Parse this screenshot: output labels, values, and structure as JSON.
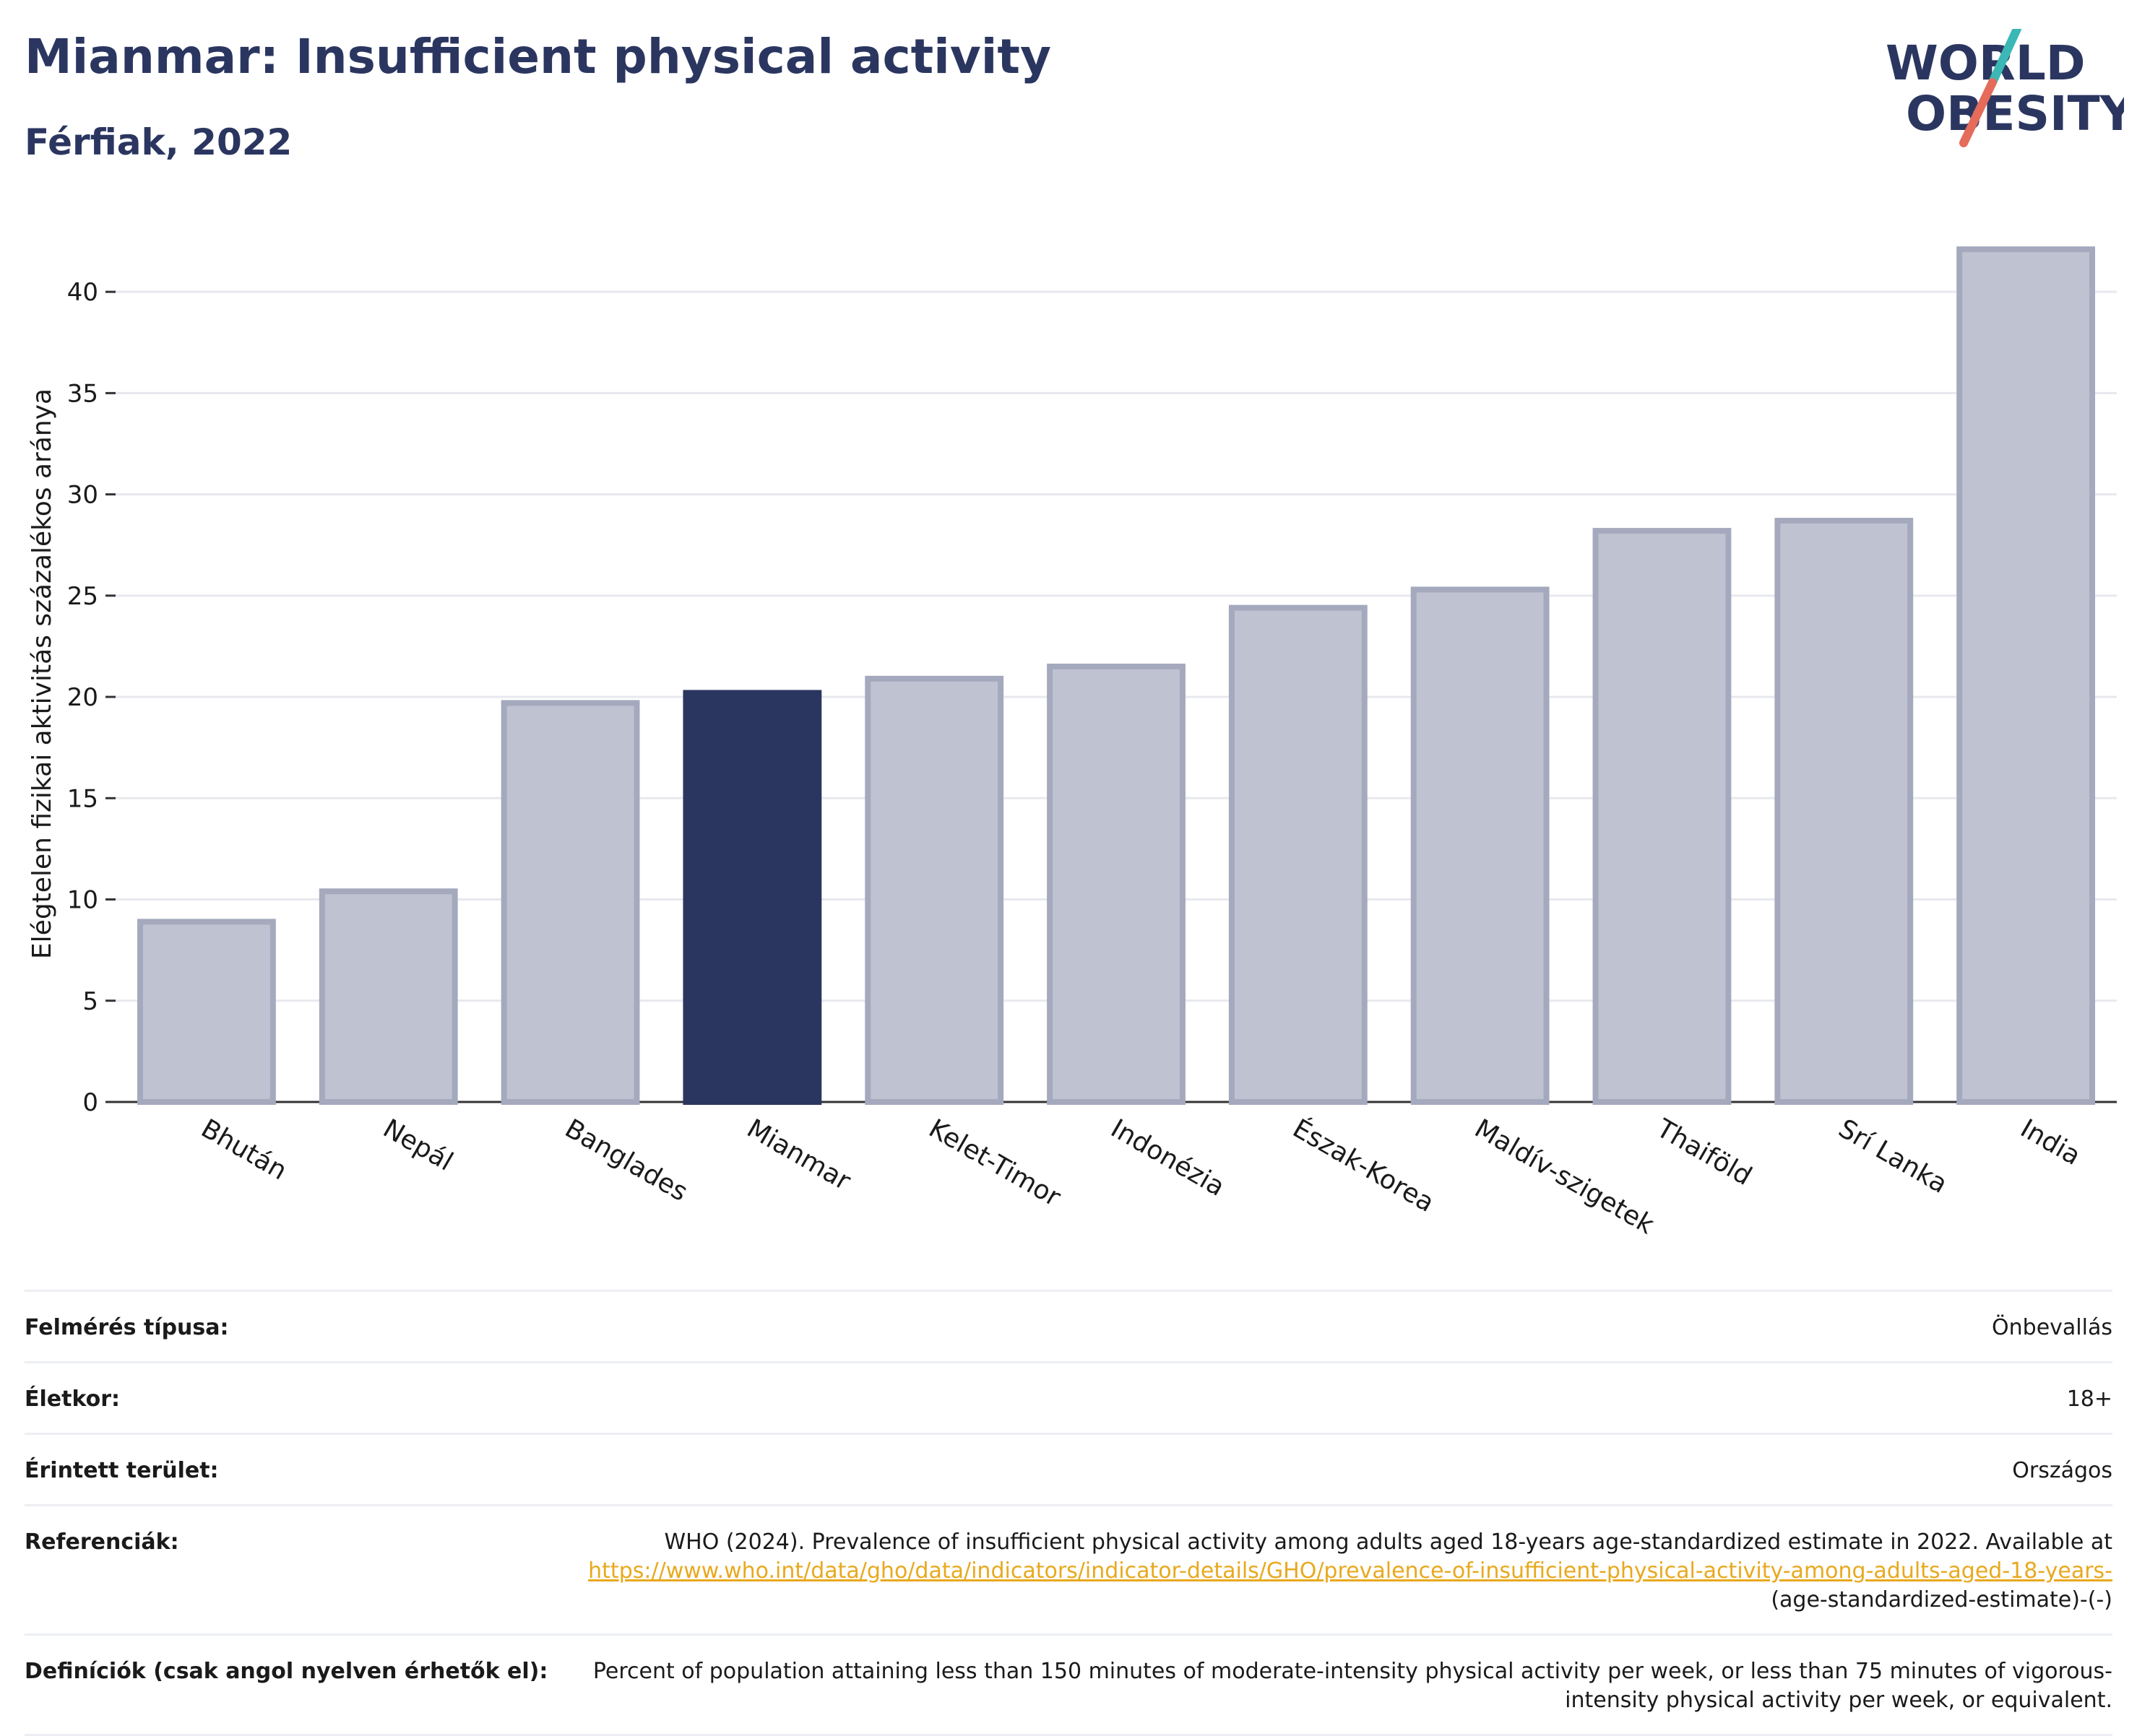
{
  "header": {
    "title": "Mianmar: Insufficient physical activity",
    "subtitle": "Férfiak, 2022"
  },
  "logo": {
    "line1": "WORLD",
    "line2": "OBESITY",
    "accent_teal": "#3bb8b5",
    "accent_coral": "#e56b5b"
  },
  "colors": {
    "highlight": "#2b3660",
    "bar_fill": "#bfc3d1",
    "bar_stroke": "#a4a9bd",
    "grid": "#e8e9ee"
  },
  "chart_data": {
    "type": "bar",
    "title": "Mianmar: Insufficient physical activity",
    "subtitle": "Férfiak, 2022",
    "xlabel": "",
    "ylabel": "Elégtelen fizikai aktivitás százalékos aránya",
    "ylim": [
      0,
      43
    ],
    "yticks": [
      0,
      5,
      10,
      15,
      20,
      25,
      30,
      35,
      40
    ],
    "grid": true,
    "categories": [
      "Bhután",
      "Nepál",
      "Banglades",
      "Mianmar",
      "Kelet-Timor",
      "Indonézia",
      "Észak-Korea",
      "Maldív-szigetek",
      "Thaiföld",
      "Srí Lanka",
      "India"
    ],
    "values": [
      8.9,
      10.4,
      19.7,
      20.2,
      20.9,
      21.5,
      24.4,
      25.3,
      28.2,
      28.7,
      42.1
    ],
    "highlight": "Mianmar"
  },
  "meta": {
    "survey_label": "Felmérés típusa:",
    "survey_value": "Önbevallás",
    "age_label": "Életkor:",
    "age_value": "18+",
    "area_label": "Érintett terület:",
    "area_value": "Országos",
    "ref_label": "Referenciák:",
    "ref_text": "WHO (2024). Prevalence of insufficient physical activity among adults aged 18-years age-standardized estimate in 2022. Available at",
    "ref_link": "https://www.who.int/data/gho/data/indicators/indicator-details/GHO/prevalence-of-insufficient-physical-activity-among-adults-aged-18-years-",
    "ref_suffix": "(age-standardized-estimate)-(-)",
    "def_label": "Definíciók (csak angol nyelven érhetők el):",
    "def_value": "Percent of population attaining less than 150 minutes of moderate-intensity physical activity per week, or less than 75 minutes of vigorous-intensity physical activity per week, or equivalent."
  }
}
